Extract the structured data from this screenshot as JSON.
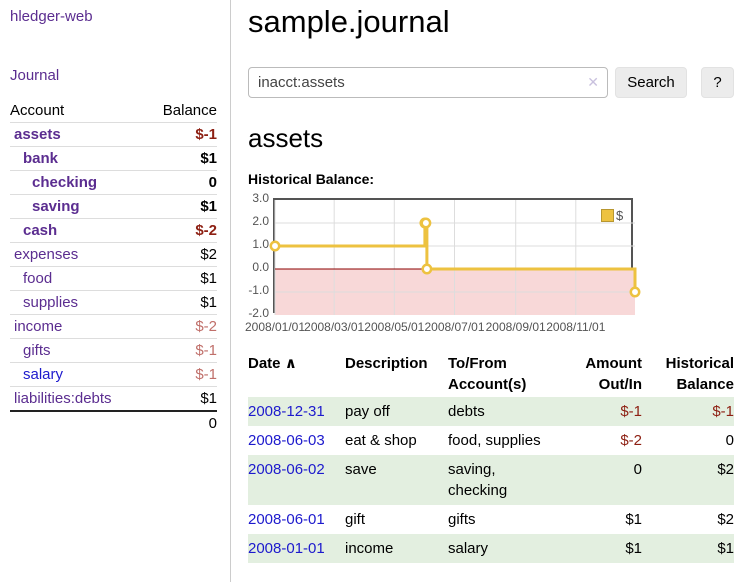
{
  "sidebar": {
    "brand": "hledger-web",
    "journal_link": "Journal",
    "accounts_table": {
      "col_account": "Account",
      "col_balance": "Balance",
      "rows": [
        {
          "name": "assets",
          "depth": 1,
          "bold": true,
          "balance": "$-1",
          "balance_class": "neg-strong"
        },
        {
          "name": "bank",
          "depth": 2,
          "bold": true,
          "balance": "$1",
          "balance_class": "pos"
        },
        {
          "name": "checking",
          "depth": 3,
          "bold": true,
          "balance": "0",
          "balance_class": "pos"
        },
        {
          "name": "saving",
          "depth": 3,
          "bold": true,
          "balance": "$1",
          "balance_class": "pos"
        },
        {
          "name": "cash",
          "depth": 2,
          "bold": true,
          "balance": "$-2",
          "balance_class": "neg-strong"
        },
        {
          "name": "expenses",
          "depth": 1,
          "bold": false,
          "balance": "$2",
          "balance_class": "pos"
        },
        {
          "name": "food",
          "depth": 2,
          "bold": false,
          "balance": "$1",
          "balance_class": "pos"
        },
        {
          "name": "supplies",
          "depth": 2,
          "bold": false,
          "balance": "$1",
          "balance_class": "pos"
        },
        {
          "name": "income",
          "depth": 1,
          "bold": false,
          "balance": "$-2",
          "balance_class": "neg-light"
        },
        {
          "name": "gifts",
          "depth": 2,
          "bold": false,
          "balance": "$-1",
          "balance_class": "neg-light"
        },
        {
          "name": "salary",
          "depth": 2,
          "bold": false,
          "balance": "$-1",
          "balance_class": "neg-light",
          "link_color": "blue"
        },
        {
          "name": "liabilities:debts",
          "depth": 1,
          "bold": false,
          "balance": "$1",
          "balance_class": "pos"
        }
      ],
      "total": "0"
    }
  },
  "header": {
    "title": "sample.journal"
  },
  "search": {
    "value": "inacct:assets",
    "clear_icon": "✕",
    "button_label": "Search",
    "help_label": "?"
  },
  "account_page": {
    "heading": "assets",
    "chart_label": "Historical Balance:"
  },
  "chart_data": {
    "type": "line",
    "style": "step",
    "title": "Historical Balance",
    "series": [
      {
        "name": "$",
        "color": "#edc240",
        "points": [
          [
            "2008-01-01",
            1
          ],
          [
            "2008-06-01",
            2
          ],
          [
            "2008-06-02",
            2
          ],
          [
            "2008-06-03",
            0
          ],
          [
            "2008-12-31",
            -1
          ]
        ]
      }
    ],
    "xrange": [
      "2008-01-01",
      "2008-12-31"
    ],
    "ylim": [
      -2,
      3
    ],
    "yticks": [
      "3.0",
      "2.0",
      "1.0",
      "0.0",
      "-1.0",
      "-2.0"
    ],
    "xticks": [
      "2008/01/01",
      "2008/03/01",
      "2008/05/01",
      "2008/07/01",
      "2008/09/01",
      "2008/11/01"
    ],
    "xtick_dates": [
      "2008-01-01",
      "2008-03-01",
      "2008-05-01",
      "2008-07-01",
      "2008-09-01",
      "2008-11-01"
    ],
    "legend": {
      "label": "$",
      "position": "top-right"
    },
    "grid": true,
    "negative_region_fill": "#f8d8d8",
    "zero_line_color": "#8b0000"
  },
  "register_table": {
    "headers": {
      "date": "Date",
      "sort_icon": "∧",
      "description": "Description",
      "account": "To/From Account(s)",
      "amount": "Amount Out/In",
      "balance": "Historical Balance"
    },
    "rows": [
      {
        "date": "2008-12-31",
        "description": "pay off",
        "accounts": "debts",
        "amount": "$-1",
        "amount_neg": true,
        "balance": "$-1",
        "balance_neg": true
      },
      {
        "date": "2008-06-03",
        "description": "eat & shop",
        "accounts": "food, supplies",
        "amount": "$-2",
        "amount_neg": true,
        "balance": "0",
        "balance_neg": false
      },
      {
        "date": "2008-06-02",
        "description": "save",
        "accounts": "saving, checking",
        "amount": "0",
        "amount_neg": false,
        "balance": "$2",
        "balance_neg": false
      },
      {
        "date": "2008-06-01",
        "description": "gift",
        "accounts": "gifts",
        "amount": "$1",
        "amount_neg": false,
        "balance": "$2",
        "balance_neg": false
      },
      {
        "date": "2008-01-01",
        "description": "income",
        "accounts": "salary",
        "amount": "$1",
        "amount_neg": false,
        "balance": "$1",
        "balance_neg": false
      }
    ]
  },
  "colors": {
    "link_purple": "#5b2d90",
    "link_blue": "#1d1acd",
    "negative_strong": "#8d1f12",
    "negative_light": "#c06f6a",
    "row_stripe_green": "#e3efe0",
    "chart_line_yellow": "#edc240",
    "chart_negative_fill": "#f8d8d8",
    "chart_zero_line": "#8b0000",
    "chart_axis_text": "#545454",
    "chart_grid": "#dddddd",
    "button_bg": "#ececec"
  }
}
